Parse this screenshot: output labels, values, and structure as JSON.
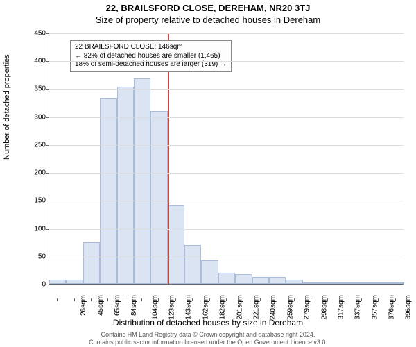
{
  "header": {
    "title": "22, BRAILSFORD CLOSE, DEREHAM, NR20 3TJ",
    "subtitle": "Size of property relative to detached houses in Dereham"
  },
  "chart": {
    "type": "histogram",
    "ylabel": "Number of detached properties",
    "xlabel": "Distribution of detached houses by size in Dereham",
    "ylim": [
      0,
      450
    ],
    "ytick_step": 50,
    "bar_color": "#dbe4f3",
    "bar_border_color": "#a9bcd9",
    "grid_color": "#dddddd",
    "axis_color": "#666666",
    "marker_color": "#cc4444",
    "background_color": "#ffffff",
    "categories": [
      "26sqm",
      "45sqm",
      "65sqm",
      "84sqm",
      "104sqm",
      "123sqm",
      "143sqm",
      "162sqm",
      "182sqm",
      "201sqm",
      "221sqm",
      "240sqm",
      "259sqm",
      "279sqm",
      "298sqm",
      "317sqm",
      "337sqm",
      "357sqm",
      "376sqm",
      "396sqm",
      "415sqm"
    ],
    "values": [
      8,
      8,
      75,
      333,
      353,
      368,
      309,
      140,
      70,
      42,
      20,
      18,
      12,
      12,
      7,
      2,
      2,
      0,
      3,
      2,
      2
    ],
    "marker_after_index": 6
  },
  "infobox": {
    "line1": "22 BRAILSFORD CLOSE: 146sqm",
    "line2": "← 82% of detached houses are smaller (1,465)",
    "line3": "18% of semi-detached houses are larger (319) →"
  },
  "footer": {
    "line1": "Contains HM Land Registry data © Crown copyright and database right 2024.",
    "line2": "Contains public sector information licensed under the Open Government Licence v3.0."
  }
}
